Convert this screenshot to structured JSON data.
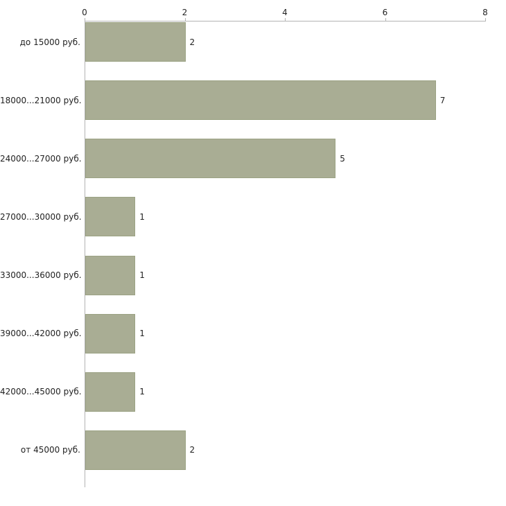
{
  "chart_data": {
    "type": "bar",
    "orientation": "horizontal",
    "title": "",
    "xlabel": "",
    "ylabel": "",
    "categories": [
      "до 15000 руб.",
      "18000...21000 руб.",
      "24000...27000 руб.",
      "27000...30000 руб.",
      "33000...36000 руб.",
      "39000...42000 руб.",
      "42000...45000 руб.",
      "от 45000 руб."
    ],
    "values": [
      2,
      7,
      5,
      1,
      1,
      1,
      1,
      2
    ],
    "value_labels": [
      "2",
      "7",
      "5",
      "1",
      "1",
      "1",
      "1",
      "2"
    ],
    "xlim": [
      0,
      8
    ],
    "x_ticks": [
      "0",
      "2",
      "4",
      "6",
      "8"
    ],
    "x_tick_values": [
      0,
      2,
      4,
      6,
      8
    ],
    "grid": false,
    "legend": false,
    "axis_position": "top-left",
    "colors": {
      "bar_fill": "#a9ad94",
      "bar_border": "#9ba283",
      "axis": "#b3b3b3",
      "text": "#222222",
      "background": "#ffffff"
    }
  }
}
